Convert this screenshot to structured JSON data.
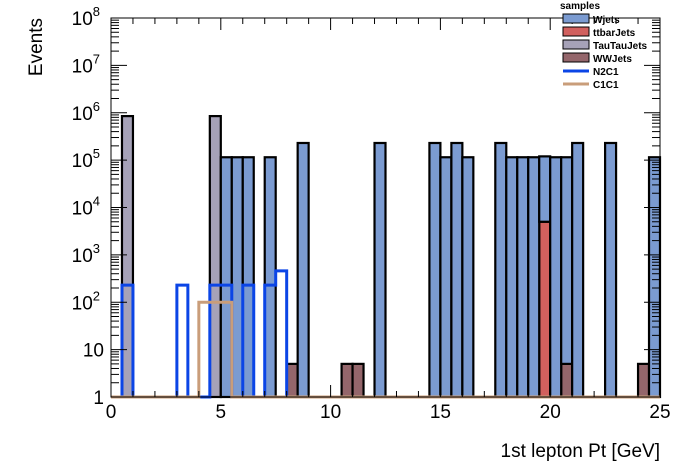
{
  "chart_data": {
    "type": "bar",
    "subtype": "stacked-histogram",
    "xlabel": "1st lepton Pt [GeV]",
    "ylabel": "Events",
    "xlim": [
      0,
      25
    ],
    "ylim": [
      1,
      100000000
    ],
    "yscale": "log",
    "bin_width": 0.5,
    "x_ticks": [
      0,
      5,
      10,
      15,
      20,
      25
    ],
    "x_tick_labels": [
      "0",
      "5",
      "10",
      "15",
      "20",
      "25"
    ],
    "y_ticks": [
      1,
      10,
      100,
      1000,
      10000,
      100000,
      1000000,
      10000000,
      100000000
    ],
    "y_tick_labels": [
      {
        "base": "1",
        "exp": ""
      },
      {
        "base": "10",
        "exp": ""
      },
      {
        "base": "10",
        "exp": "2"
      },
      {
        "base": "10",
        "exp": "3"
      },
      {
        "base": "10",
        "exp": "4"
      },
      {
        "base": "10",
        "exp": "5"
      },
      {
        "base": "10",
        "exp": "6"
      },
      {
        "base": "10",
        "exp": "7"
      },
      {
        "base": "10",
        "exp": "8"
      }
    ],
    "legend": {
      "title": "samples",
      "position": "top-right",
      "entries": [
        {
          "name": "Wjets",
          "kind": "fill",
          "color": "#7b9bd1"
        },
        {
          "name": "ttbarJets",
          "kind": "fill",
          "color": "#d1605e"
        },
        {
          "name": "TauTauJets",
          "kind": "fill",
          "color": "#a6a2b8"
        },
        {
          "name": "WWJets",
          "kind": "fill",
          "color": "#94666b"
        },
        {
          "name": "N2C1",
          "kind": "line",
          "color": "#0b45e6"
        },
        {
          "name": "C1C1",
          "kind": "line",
          "color": "#c99d7a"
        }
      ]
    },
    "stacked_series": [
      {
        "name": "WWJets",
        "color": "#94666b",
        "bins": [
          {
            "x0": 8.0,
            "x1": 8.5,
            "value": 5
          },
          {
            "x0": 10.5,
            "x1": 11.5,
            "value": 5
          },
          {
            "x0": 20.5,
            "x1": 21.0,
            "value": 5
          },
          {
            "x0": 24.0,
            "x1": 24.5,
            "value": 5
          }
        ]
      },
      {
        "name": "TauTauJets",
        "color": "#a6a2b8",
        "bins": [
          {
            "x0": 0.5,
            "x1": 1.0,
            "value": 850000
          },
          {
            "x0": 4.5,
            "x1": 5.0,
            "value": 850000
          }
        ]
      },
      {
        "name": "ttbarJets",
        "color": "#d1605e",
        "bins": [
          {
            "x0": 19.5,
            "x1": 20.0,
            "value": 5000
          }
        ]
      },
      {
        "name": "Wjets",
        "color": "#7b9bd1",
        "bins": [
          {
            "x0": 5.0,
            "x1": 6.5,
            "value": 115000
          },
          {
            "x0": 7.0,
            "x1": 7.5,
            "value": 115000
          },
          {
            "x0": 8.5,
            "x1": 9.0,
            "value": 230000
          },
          {
            "x0": 12.0,
            "x1": 12.5,
            "value": 230000
          },
          {
            "x0": 14.5,
            "x1": 15.0,
            "value": 230000
          },
          {
            "x0": 15.0,
            "x1": 15.5,
            "value": 115000
          },
          {
            "x0": 15.5,
            "x1": 16.0,
            "value": 230000
          },
          {
            "x0": 16.0,
            "x1": 16.5,
            "value": 115000
          },
          {
            "x0": 17.5,
            "x1": 18.0,
            "value": 230000
          },
          {
            "x0": 18.0,
            "x1": 19.5,
            "value": 115000
          },
          {
            "x0": 19.5,
            "x1": 20.0,
            "value": 115000
          },
          {
            "x0": 20.0,
            "x1": 21.0,
            "value": 115000
          },
          {
            "x0": 21.0,
            "x1": 21.5,
            "value": 230000
          },
          {
            "x0": 22.5,
            "x1": 23.0,
            "value": 230000
          },
          {
            "x0": 24.5,
            "x1": 25.0,
            "value": 115000
          }
        ]
      }
    ],
    "line_series": [
      {
        "name": "N2C1",
        "color": "#0b45e6",
        "bins": [
          {
            "x0": 0.5,
            "x1": 1.0,
            "value": 230
          },
          {
            "x0": 3.0,
            "x1": 3.5,
            "value": 230
          },
          {
            "x0": 4.5,
            "x1": 5.0,
            "value": 230
          },
          {
            "x0": 5.0,
            "x1": 5.5,
            "value": 230
          },
          {
            "x0": 6.0,
            "x1": 6.5,
            "value": 230
          },
          {
            "x0": 7.0,
            "x1": 7.5,
            "value": 230
          },
          {
            "x0": 7.5,
            "x1": 8.0,
            "value": 460
          }
        ]
      },
      {
        "name": "C1C1",
        "color": "#c99d7a",
        "bins": [
          {
            "x0": 4.0,
            "x1": 5.5,
            "value": 100
          }
        ]
      }
    ]
  }
}
